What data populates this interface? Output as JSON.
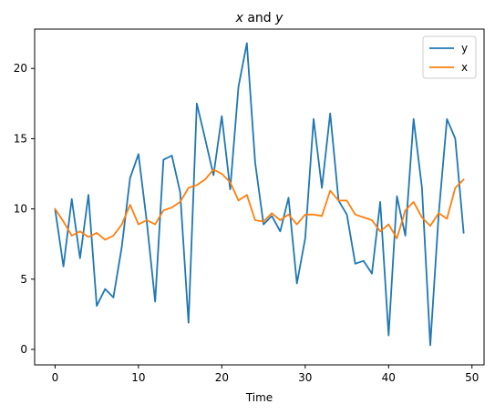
{
  "chart_data": {
    "type": "line",
    "title": "x and y",
    "xlabel": "Time",
    "ylabel": "",
    "xlim": [
      -2.45,
      51.45
    ],
    "ylim": [
      -1.1,
      22.8
    ],
    "xticks": [
      0,
      10,
      20,
      30,
      40,
      50
    ],
    "yticks": [
      0,
      5,
      10,
      15,
      20
    ],
    "grid": false,
    "legend_position": "top-right",
    "x": [
      0,
      1,
      2,
      3,
      4,
      5,
      6,
      7,
      8,
      9,
      10,
      11,
      12,
      13,
      14,
      15,
      16,
      17,
      18,
      19,
      20,
      21,
      22,
      23,
      24,
      25,
      26,
      27,
      28,
      29,
      30,
      31,
      32,
      33,
      34,
      35,
      36,
      37,
      38,
      39,
      40,
      41,
      42,
      43,
      44,
      45,
      46,
      47,
      48,
      49
    ],
    "series": [
      {
        "name": "y",
        "color": "#1f77b4",
        "values": [
          10.0,
          5.9,
          10.7,
          6.5,
          11.0,
          3.1,
          4.3,
          3.7,
          7.3,
          12.2,
          13.9,
          9.1,
          3.4,
          13.5,
          13.8,
          11.2,
          1.9,
          17.5,
          15.0,
          12.4,
          16.6,
          11.4,
          18.7,
          21.8,
          13.3,
          8.9,
          9.5,
          8.4,
          10.8,
          4.7,
          7.9,
          16.4,
          11.5,
          16.8,
          10.6,
          9.6,
          6.1,
          6.3,
          5.4,
          10.5,
          1.0,
          10.9,
          8.1,
          16.4,
          11.5,
          0.3,
          9.6,
          16.4,
          15.0,
          8.3
        ]
      },
      {
        "name": "x",
        "color": "#ff7f0e",
        "values": [
          10.0,
          9.1,
          8.1,
          8.4,
          8.0,
          8.3,
          7.8,
          8.1,
          8.9,
          10.3,
          8.9,
          9.2,
          8.9,
          9.9,
          10.1,
          10.5,
          11.5,
          11.7,
          12.1,
          12.8,
          12.5,
          11.9,
          10.6,
          11.0,
          9.2,
          9.1,
          9.7,
          9.2,
          9.6,
          8.9,
          9.6,
          9.6,
          9.5,
          11.3,
          10.6,
          10.6,
          9.6,
          9.4,
          9.2,
          8.4,
          8.9,
          7.9,
          9.9,
          10.5,
          9.4,
          8.8,
          9.7,
          9.3,
          11.5,
          12.1
        ]
      }
    ]
  }
}
